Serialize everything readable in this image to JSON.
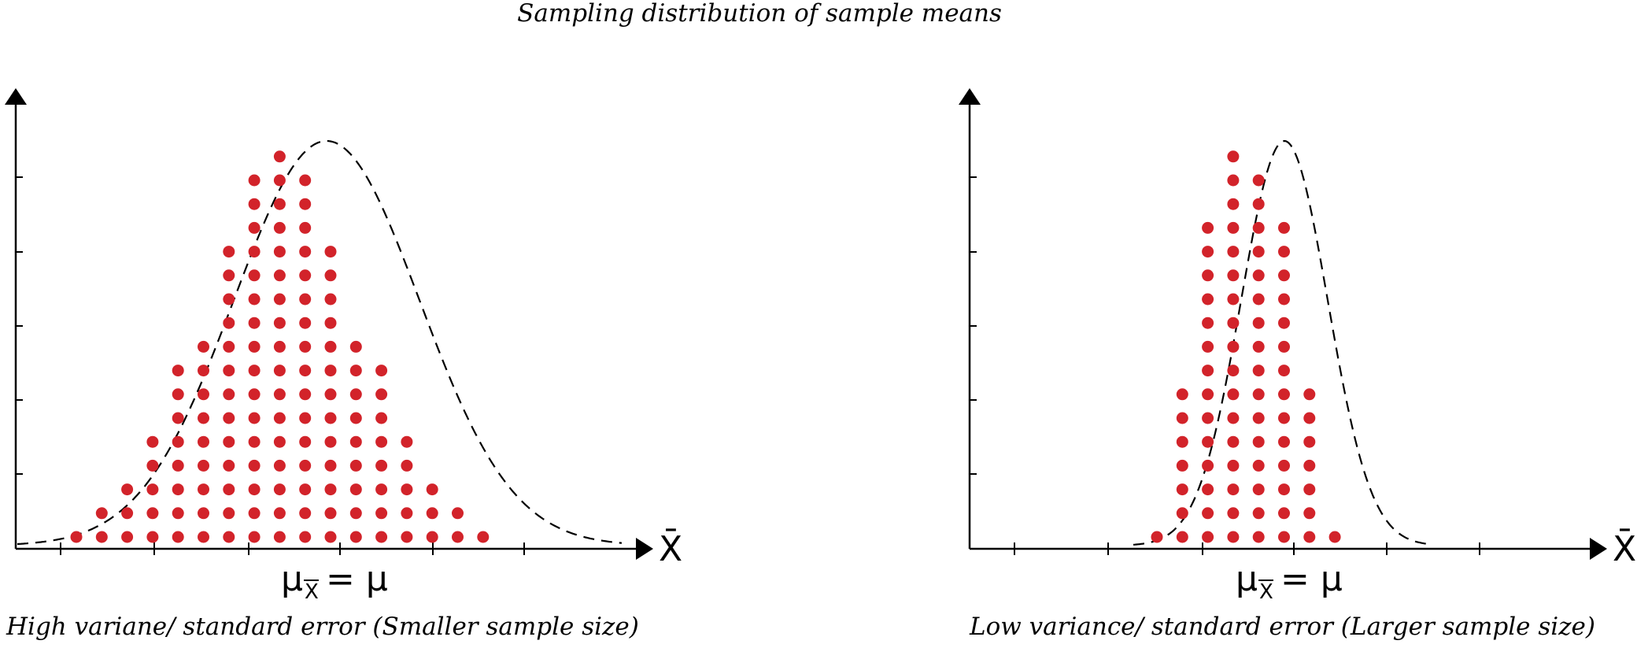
{
  "title": "Sampling distribution of sample means",
  "colors": {
    "dot": "#d2232a",
    "ink": "#000000",
    "curve": "#000000"
  },
  "panels": [
    {
      "id": "high",
      "axis_label": "X̄",
      "mean_label": "μ",
      "mean_subscript": "X",
      "mean_rhs": "= μ",
      "caption": "High variane/ standard error (Smaller sample size)",
      "column_counts": [
        1,
        2,
        3,
        5,
        8,
        9,
        13,
        16,
        17,
        16,
        13,
        9,
        8,
        5,
        3,
        2,
        1
      ]
    },
    {
      "id": "low",
      "axis_label": "X̄",
      "mean_label": "μ",
      "mean_subscript": "X",
      "mean_rhs": "= μ",
      "caption": "Low variance/ standard error (Larger sample size)",
      "column_counts": [
        1,
        7,
        14,
        17,
        16,
        14,
        7,
        1
      ]
    }
  ]
}
